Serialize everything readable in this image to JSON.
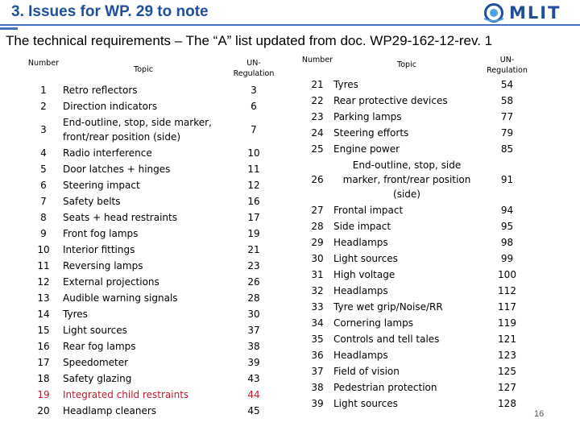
{
  "header": {
    "title": "3. Issues for WP. 29 to note",
    "logo_text": "MLIT",
    "accent_color": "#1f4e9c"
  },
  "subtitle": "The technical requirements – The “A” list updated from doc. WP29-162-12-rev. 1",
  "table_left": {
    "headers": {
      "number": "Number",
      "topic": "Topic",
      "regulation": "UN-Regulation"
    },
    "rows": [
      {
        "number": "1",
        "topic": "Retro reflectors",
        "regulation": "3"
      },
      {
        "number": "2",
        "topic": "Direction indicators",
        "regulation": "6"
      },
      {
        "number": "3",
        "topic": "End-outline, stop, side marker, front/rear position (side)",
        "regulation": "7"
      },
      {
        "number": "4",
        "topic": "Radio interference",
        "regulation": "10"
      },
      {
        "number": "5",
        "topic": "Door latches + hinges",
        "regulation": "11"
      },
      {
        "number": "6",
        "topic": "Steering impact",
        "regulation": "12"
      },
      {
        "number": "7",
        "topic": "Safety belts",
        "regulation": "16"
      },
      {
        "number": "8",
        "topic": "Seats + head restraints",
        "regulation": "17"
      },
      {
        "number": "9",
        "topic": "Front fog lamps",
        "regulation": "19"
      },
      {
        "number": "10",
        "topic": "Interior fittings",
        "regulation": "21"
      },
      {
        "number": "11",
        "topic": "Reversing lamps",
        "regulation": "23"
      },
      {
        "number": "12",
        "topic": "External projections",
        "regulation": "26"
      },
      {
        "number": "13",
        "topic": "Audible warning signals",
        "regulation": "28"
      },
      {
        "number": "14",
        "topic": "Tyres",
        "regulation": "30"
      },
      {
        "number": "15",
        "topic": "Light sources",
        "regulation": "37"
      },
      {
        "number": "16",
        "topic": "Rear fog lamps",
        "regulation": "38"
      },
      {
        "number": "17",
        "topic": "Speedometer",
        "regulation": "39"
      },
      {
        "number": "18",
        "topic": "Safety glazing",
        "regulation": "43"
      },
      {
        "number": "19",
        "topic": "Integrated child restraints",
        "regulation": "44",
        "highlight_color": "#c0192f"
      },
      {
        "number": "20",
        "topic": "Headlamp cleaners",
        "regulation": "45"
      }
    ]
  },
  "table_right": {
    "headers": {
      "number": "Number",
      "topic": "Topic",
      "regulation": "UN-Regulation"
    },
    "rows": [
      {
        "number": "21",
        "topic": "Tyres",
        "regulation": "54"
      },
      {
        "number": "22",
        "topic": "Rear protective devices",
        "regulation": "58"
      },
      {
        "number": "23",
        "topic": "Parking lamps",
        "regulation": "77"
      },
      {
        "number": "24",
        "topic": "Steering efforts",
        "regulation": "79"
      },
      {
        "number": "25",
        "topic": "Engine power",
        "regulation": "85"
      },
      {
        "number": "26",
        "topic": "End-outline, stop, side marker, front/rear position (side)",
        "regulation": "91"
      },
      {
        "number": "27",
        "topic": "Frontal impact",
        "regulation": "94"
      },
      {
        "number": "28",
        "topic": "Side impact",
        "regulation": "95"
      },
      {
        "number": "29",
        "topic": "Headlamps",
        "regulation": "98"
      },
      {
        "number": "30",
        "topic": "Light sources",
        "regulation": "99"
      },
      {
        "number": "31",
        "topic": "High voltage",
        "regulation": "100"
      },
      {
        "number": "32",
        "topic": "Headlamps",
        "regulation": "112"
      },
      {
        "number": "33",
        "topic": "Tyre wet grip/Noise/RR",
        "regulation": "117"
      },
      {
        "number": "34",
        "topic": "Cornering lamps",
        "regulation": "119"
      },
      {
        "number": "35",
        "topic": "Controls and tell tales",
        "regulation": "121"
      },
      {
        "number": "36",
        "topic": "Headlamps",
        "regulation": "123"
      },
      {
        "number": "37",
        "topic": "Field of vision",
        "regulation": "125"
      },
      {
        "number": "38",
        "topic": "Pedestrian protection",
        "regulation": "127"
      },
      {
        "number": "39",
        "topic": "Light sources",
        "regulation": "128"
      }
    ]
  },
  "page_number": "16"
}
